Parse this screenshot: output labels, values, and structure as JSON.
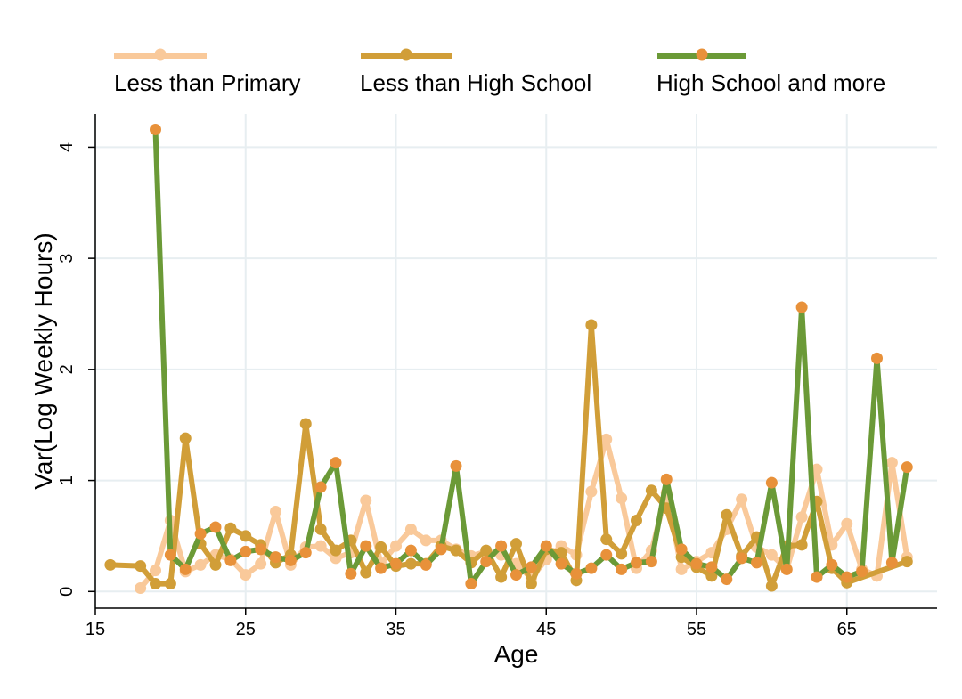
{
  "chart_data": {
    "type": "line",
    "title": "",
    "xlabel": "Age",
    "ylabel": "Var(Log Weekly Hours)",
    "xlim": [
      15,
      71
    ],
    "ylim": [
      -0.15,
      4.3
    ],
    "xticks": [
      15,
      25,
      35,
      45,
      55,
      65
    ],
    "yticks": [
      0,
      1,
      2,
      3,
      4
    ],
    "grid": true,
    "legend_position": "top",
    "series": [
      {
        "name": "Less than Primary",
        "color": "#F9C99A",
        "marker_color": "#F9C99A",
        "x": [
          18,
          19,
          20,
          21,
          22,
          23,
          24,
          25,
          26,
          27,
          28,
          29,
          30,
          31,
          32,
          33,
          34,
          35,
          36,
          37,
          38,
          39,
          40,
          41,
          42,
          43,
          44,
          45,
          46,
          47,
          48,
          49,
          50,
          51,
          52,
          53,
          54,
          55,
          56,
          57,
          58,
          59,
          60,
          61,
          62,
          63,
          64,
          65,
          66,
          67,
          68,
          69
        ],
        "y": [
          0.03,
          0.19,
          0.64,
          0.18,
          0.24,
          0.33,
          0.29,
          0.15,
          0.25,
          0.72,
          0.24,
          0.4,
          0.41,
          0.3,
          0.35,
          0.82,
          0.25,
          0.41,
          0.56,
          0.46,
          0.46,
          0.38,
          0.32,
          0.36,
          0.33,
          0.25,
          0.12,
          0.29,
          0.41,
          0.33,
          0.9,
          1.37,
          0.84,
          0.21,
          0.37,
          0.89,
          0.2,
          0.27,
          0.35,
          0.56,
          0.83,
          0.4,
          0.33,
          0.2,
          0.67,
          1.1,
          0.42,
          0.61,
          0.2,
          0.14,
          1.16,
          0.31
        ]
      },
      {
        "name": "Less than High School",
        "color": "#D19E38",
        "marker_color": "#D19E38",
        "x": [
          16,
          18,
          19,
          20,
          21,
          22,
          23,
          24,
          25,
          26,
          27,
          28,
          29,
          30,
          31,
          32,
          33,
          34,
          35,
          36,
          37,
          38,
          39,
          40,
          41,
          42,
          43,
          44,
          45,
          46,
          47,
          48,
          49,
          50,
          51,
          52,
          53,
          54,
          55,
          56,
          57,
          58,
          59,
          60,
          61,
          62,
          63,
          64,
          65,
          69
        ],
        "y": [
          0.24,
          0.23,
          0.07,
          0.07,
          1.38,
          0.43,
          0.24,
          0.57,
          0.5,
          0.42,
          0.26,
          0.33,
          1.51,
          0.56,
          0.37,
          0.46,
          0.17,
          0.4,
          0.23,
          0.25,
          0.25,
          0.41,
          0.37,
          0.26,
          0.37,
          0.13,
          0.43,
          0.07,
          0.38,
          0.35,
          0.1,
          2.4,
          0.47,
          0.34,
          0.64,
          0.91,
          0.75,
          0.31,
          0.22,
          0.14,
          0.69,
          0.32,
          0.49,
          0.05,
          0.41,
          0.42,
          0.81,
          0.21,
          0.08,
          0.27
        ]
      },
      {
        "name": "High School and more",
        "color": "#6B9A37",
        "marker_color": "#E8913A",
        "x": [
          19,
          20,
          21,
          22,
          23,
          24,
          25,
          26,
          27,
          28,
          29,
          30,
          31,
          32,
          33,
          34,
          35,
          36,
          37,
          38,
          39,
          40,
          41,
          42,
          43,
          44,
          45,
          46,
          47,
          48,
          49,
          50,
          51,
          52,
          53,
          54,
          55,
          56,
          57,
          58,
          59,
          60,
          61,
          62,
          63,
          64,
          65,
          66,
          67,
          68,
          69
        ],
        "y": [
          4.16,
          0.33,
          0.2,
          0.52,
          0.58,
          0.28,
          0.36,
          0.38,
          0.31,
          0.28,
          0.35,
          0.94,
          1.16,
          0.16,
          0.41,
          0.21,
          0.25,
          0.37,
          0.24,
          0.38,
          1.13,
          0.07,
          0.27,
          0.41,
          0.15,
          0.22,
          0.41,
          0.25,
          0.16,
          0.21,
          0.33,
          0.2,
          0.26,
          0.27,
          1.01,
          0.38,
          0.25,
          0.22,
          0.11,
          0.3,
          0.26,
          0.98,
          0.2,
          2.56,
          0.13,
          0.24,
          0.13,
          0.18,
          2.1,
          0.26,
          1.12
        ]
      }
    ]
  }
}
